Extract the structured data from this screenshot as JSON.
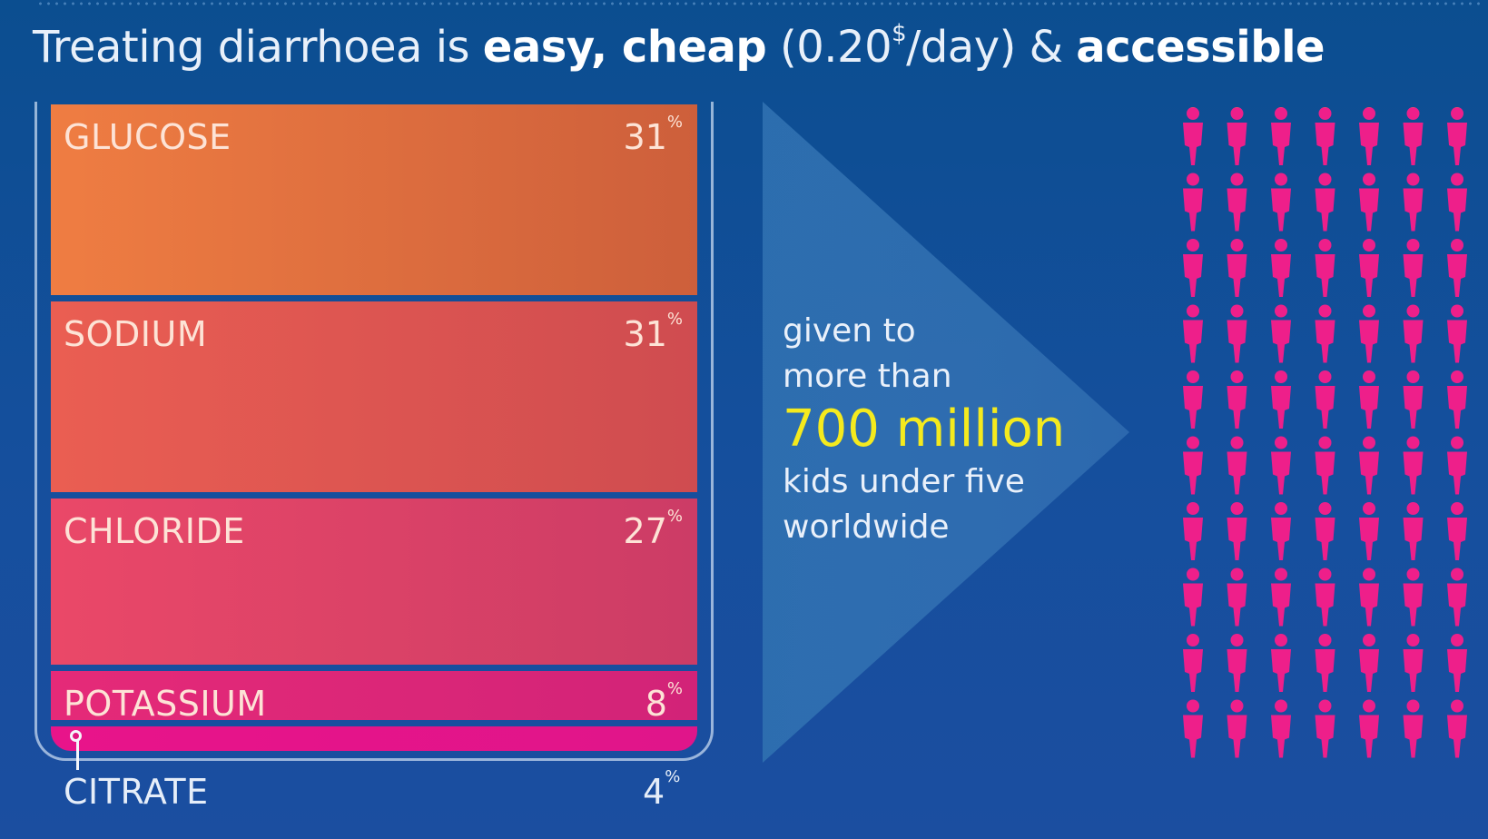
{
  "title": {
    "part1": "Treating diarrhoea is ",
    "bold1": "easy, cheap",
    "part2": " (0.20",
    "sup": "$",
    "part3": "/day) & ",
    "bold2": "accessible"
  },
  "colors": {
    "background": "#0f4e95",
    "highlight": "#f4ea1e",
    "people_top": "#f4665a",
    "people_bottom": "#ee1f8a"
  },
  "chart_data": {
    "type": "stacked-bar",
    "title": "Treating diarrhoea is easy, cheap (0.20$/day) & accessible",
    "categories": [
      "GLUCOSE",
      "SODIUM",
      "CHLORIDE",
      "POTASSIUM",
      "CITRATE"
    ],
    "values": [
      31,
      31,
      27,
      8,
      4
    ],
    "unit": "%",
    "segments": [
      {
        "label": "GLUCOSE",
        "value": 31,
        "pct_text": "31",
        "color_left": "#ef7d42",
        "color_right": "#cd5f3b"
      },
      {
        "label": "SODIUM",
        "value": 31,
        "pct_text": "31",
        "color_left": "#ea5e52",
        "color_right": "#cf4c50"
      },
      {
        "label": "CHLORIDE",
        "value": 27,
        "pct_text": "27",
        "color_left": "#ea4868",
        "color_right": "#cc3c66"
      },
      {
        "label": "POTASSIUM",
        "value": 8,
        "pct_text": "8",
        "color_left": "#e52a78",
        "color_right": "#d22378"
      },
      {
        "label": "CITRATE",
        "value": 4,
        "pct_text": "4",
        "color_left": "#e8148a",
        "color_right": "#e0158a"
      }
    ]
  },
  "pct_sign": "%",
  "arrow": {
    "line1": "given to",
    "line2": "more than",
    "highlight": "700 million",
    "line3": "kids under five",
    "line4": "worldwide"
  },
  "people_icons": {
    "icon": "person-icon",
    "columns": 7,
    "rows": 10
  }
}
